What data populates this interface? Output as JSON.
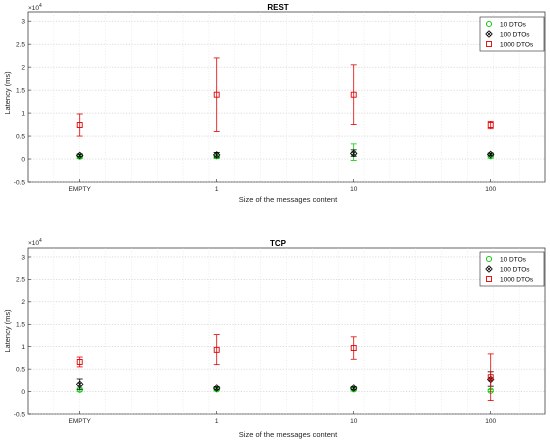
{
  "chart_data": [
    {
      "type": "scatter",
      "title": "REST",
      "xlabel": "Size of the messages content",
      "ylabel": "Latency (ms)",
      "exponent_label": "×10",
      "exponent_power": "4",
      "categories": [
        "EMPTY",
        "1",
        "10",
        "100"
      ],
      "ylim": [
        -0.5,
        3.2
      ],
      "yticks": [
        -0.5,
        0,
        0.5,
        1,
        1.5,
        2,
        2.5,
        3
      ],
      "ytick_labels": [
        "-0.5",
        "0",
        "0.5",
        "1",
        "1.5",
        "2",
        "2.5",
        "3"
      ],
      "grid": true,
      "legend_position": "top-right",
      "series": [
        {
          "name": "10 DTOs",
          "color": "#00cc00",
          "marker": "circle",
          "values": [
            0.05,
            0.06,
            0.12,
            0.06
          ],
          "lower": [
            0.01,
            0.01,
            -0.03,
            0.02
          ],
          "upper": [
            0.09,
            0.14,
            0.33,
            0.1
          ]
        },
        {
          "name": "100 DTOs",
          "color": "#000000",
          "marker": "x-diamond",
          "values": [
            0.08,
            0.09,
            0.12,
            0.1
          ],
          "lower": [
            0.05,
            0.04,
            0.06,
            0.07
          ],
          "upper": [
            0.11,
            0.14,
            0.2,
            0.13
          ]
        },
        {
          "name": "1000 DTOs",
          "color": "#e00000",
          "marker": "square",
          "values": [
            0.74,
            1.4,
            1.4,
            0.74
          ],
          "lower": [
            0.5,
            0.6,
            0.75,
            0.66
          ],
          "upper": [
            0.98,
            2.2,
            2.05,
            0.82
          ]
        }
      ]
    },
    {
      "type": "scatter",
      "title": "TCP",
      "xlabel": "Size of the messages content",
      "ylabel": "Latency (ms)",
      "exponent_label": "×10",
      "exponent_power": "4",
      "categories": [
        "EMPTY",
        "1",
        "10",
        "100"
      ],
      "ylim": [
        -0.5,
        3.2
      ],
      "yticks": [
        -0.5,
        0,
        0.5,
        1,
        1.5,
        2,
        2.5,
        3
      ],
      "ytick_labels": [
        "-0.5",
        "0",
        "0.5",
        "1",
        "1.5",
        "2",
        "2.5",
        "3"
      ],
      "grid": true,
      "legend_position": "top-right",
      "series": [
        {
          "name": "10 DTOs",
          "color": "#00cc00",
          "marker": "circle",
          "values": [
            0.04,
            0.05,
            0.05,
            0.02
          ],
          "lower": [
            0.01,
            0.02,
            0.02,
            0.0
          ],
          "upper": [
            0.08,
            0.09,
            0.09,
            0.05
          ]
        },
        {
          "name": "100 DTOs",
          "color": "#000000",
          "marker": "x-diamond",
          "values": [
            0.16,
            0.08,
            0.08,
            0.27
          ],
          "lower": [
            0.05,
            0.05,
            0.05,
            0.12
          ],
          "upper": [
            0.28,
            0.11,
            0.11,
            0.44
          ]
        },
        {
          "name": "1000 DTOs",
          "color": "#e00000",
          "marker": "square",
          "values": [
            0.66,
            0.93,
            0.97,
            0.32
          ],
          "lower": [
            0.55,
            0.6,
            0.72,
            -0.2
          ],
          "upper": [
            0.77,
            1.27,
            1.22,
            0.84
          ]
        }
      ]
    }
  ]
}
